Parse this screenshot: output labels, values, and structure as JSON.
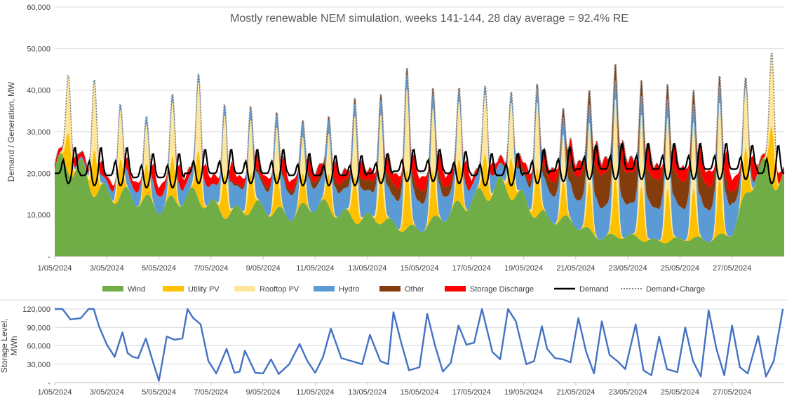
{
  "chart_data": [
    {
      "type": "area",
      "title": "Mostly renewable NEM simulation, weeks 141-144, 28 day average = 92.4% RE",
      "ylabel": "Demand / Generation, MW",
      "xlabel": "",
      "ylim": [
        0,
        60000
      ],
      "y_ticks": [
        "-",
        "10,000",
        "20,000",
        "30,000",
        "40,000",
        "50,000",
        "60,000"
      ],
      "x_ticks": [
        "1/05/2024",
        "3/05/2024",
        "5/05/2024",
        "7/05/2024",
        "9/05/2024",
        "11/05/2024",
        "13/05/2024",
        "15/05/2024",
        "17/05/2024",
        "19/05/2024",
        "21/05/2024",
        "23/05/2024",
        "25/05/2024",
        "27/05/2024"
      ],
      "days": 28,
      "stacked_series": [
        {
          "name": "Wind",
          "color": "#70AD47",
          "daily_mw": [
            21000,
            20000,
            16000,
            13000,
            13000,
            14000,
            12500,
            11000,
            11000,
            11000,
            11500,
            11000,
            9000,
            7500,
            7000,
            9000,
            15000,
            16000,
            14000,
            9000,
            7500,
            5000,
            4500,
            4000,
            4000,
            4000,
            6000,
            20000
          ]
        },
        {
          "name": "Utility PV",
          "color": "#FFC000",
          "peak_mw": [
            11000,
            10500,
            9500,
            8500,
            8500,
            10500,
            10000,
            9000,
            8500,
            8000,
            8500,
            10000,
            10500,
            11000,
            10500,
            10500,
            11000,
            11000,
            10500,
            11000,
            11500,
            10500,
            10000,
            10000,
            10500,
            10500,
            10000,
            9000
          ]
        },
        {
          "name": "Rooftop PV",
          "color": "#FFE699",
          "peak_mw": [
            16000,
            15500,
            13000,
            11000,
            11500,
            15500,
            13500,
            12500,
            11000,
            10000,
            11000,
            13500,
            14500,
            15500,
            14500,
            14500,
            15500,
            15000,
            14500,
            14500,
            15000,
            14000,
            13500,
            13500,
            14000,
            14000,
            13500,
            12000
          ]
        },
        {
          "name": "Hydro",
          "color": "#5B9BD5",
          "daily_mw": [
            0,
            500,
            1500,
            3000,
            3500,
            3000,
            3500,
            4500,
            5000,
            5500,
            5500,
            5000,
            5500,
            6000,
            6000,
            5500,
            3500,
            3000,
            4500,
            6500,
            7000,
            7500,
            7500,
            7500,
            7500,
            7500,
            6000,
            0
          ]
        },
        {
          "name": "Other",
          "color": "#843C0C",
          "daily_mw": [
            0,
            0,
            0,
            0,
            0,
            0,
            0,
            500,
            1000,
            1000,
            1500,
            2000,
            2500,
            3000,
            3000,
            2500,
            0,
            0,
            1000,
            3000,
            5500,
            8000,
            7500,
            7000,
            6500,
            6000,
            3000,
            0
          ]
        },
        {
          "name": "Storage Discharge",
          "color": "#FF0000",
          "evening_mw": [
            2500,
            3000,
            3000,
            4000,
            4500,
            4000,
            4000,
            4000,
            4000,
            4000,
            4500,
            4500,
            5000,
            5500,
            5500,
            5000,
            3000,
            3000,
            4500,
            6000,
            6500,
            6500,
            6500,
            6500,
            6500,
            6500,
            5000,
            2000
          ]
        }
      ],
      "line_series": [
        {
          "name": "Demand",
          "color": "#000000",
          "style": "solid",
          "evening_peak_mw": [
            26500,
            26500,
            26500,
            25000,
            25000,
            26000,
            26000,
            26000,
            26000,
            25000,
            24500,
            24500,
            25000,
            26000,
            26000,
            25500,
            25000,
            25000,
            26000,
            26500,
            27000,
            27500,
            27500,
            27500,
            27500,
            27500,
            27000,
            27000
          ],
          "overnight_min_mw": [
            20000,
            19500,
            19500,
            19000,
            19000,
            20000,
            20000,
            20000,
            20000,
            19500,
            19500,
            19500,
            20000,
            20500,
            20500,
            20000,
            19500,
            19500,
            20000,
            20500,
            21000,
            21000,
            21000,
            21000,
            21000,
            21000,
            21000,
            20000
          ]
        },
        {
          "name": "Demand+Charge",
          "color": "#808080",
          "style": "dotted",
          "midday_peak_mw": [
            44000,
            43000,
            37000,
            34000,
            39500,
            44500,
            37000,
            36500,
            35000,
            33000,
            34000,
            38500,
            39500,
            46000,
            41000,
            41000,
            41500,
            40000,
            42000,
            36000,
            40500,
            47000,
            43000,
            42000,
            40500,
            44000,
            43500,
            49500
          ]
        }
      ],
      "legend": [
        "Wind",
        "Utility PV",
        "Rooftop PV",
        "Hydro",
        "Other",
        "Storage Discharge",
        "Demand",
        "Demand+Charge"
      ],
      "legend_placement": "bottom"
    },
    {
      "type": "line",
      "ylabel": "Storage Level, MWh",
      "xlabel": "",
      "ylim": [
        0,
        120000
      ],
      "y_ticks": [
        "-",
        "30,000",
        "60,000",
        "90,000",
        "120,000"
      ],
      "x_ticks": [
        "1/05/2024",
        "3/05/2024",
        "5/05/2024",
        "7/05/2024",
        "9/05/2024",
        "11/05/2024",
        "13/05/2024",
        "15/05/2024",
        "17/05/2024",
        "19/05/2024",
        "21/05/2024",
        "23/05/2024",
        "25/05/2024",
        "27/05/2024"
      ],
      "series": [
        {
          "name": "Storage Level",
          "color": "#4472C4",
          "x_days": [
            0,
            0.3,
            0.6,
            1.0,
            1.3,
            1.5,
            1.7,
            2.0,
            2.3,
            2.6,
            2.8,
            3.0,
            3.2,
            3.5,
            3.8,
            4.0,
            4.3,
            4.6,
            4.9,
            5.1,
            5.3,
            5.6,
            5.9,
            6.2,
            6.6,
            6.9,
            7.1,
            7.3,
            7.7,
            8.0,
            8.3,
            8.6,
            9.0,
            9.4,
            9.7,
            10.0,
            10.3,
            10.6,
            11.0,
            11.4,
            11.8,
            12.1,
            12.5,
            12.8,
            13.0,
            13.3,
            13.6,
            14.0,
            14.3,
            14.6,
            14.9,
            15.2,
            15.5,
            15.8,
            16.1,
            16.4,
            16.8,
            17.1,
            17.4,
            17.7,
            18.1,
            18.4,
            18.7,
            18.9,
            19.2,
            19.5,
            19.8,
            20.1,
            20.4,
            20.7,
            21.0,
            21.3,
            21.6,
            21.9,
            22.3,
            22.6,
            22.9,
            23.2,
            23.5,
            23.9,
            24.2,
            24.5,
            24.8,
            25.1,
            25.4,
            25.7,
            26.0,
            26.3,
            26.6,
            27.0,
            27.3,
            27.6,
            27.95
          ],
          "values_mwh": [
            120000,
            120000,
            103000,
            105000,
            120000,
            120000,
            92000,
            62000,
            42000,
            82000,
            48000,
            42000,
            40000,
            72000,
            30000,
            3000,
            75000,
            70000,
            72000,
            120000,
            106000,
            95000,
            35000,
            15000,
            55000,
            16000,
            18000,
            52000,
            16000,
            15000,
            38000,
            14000,
            30000,
            63000,
            35000,
            16000,
            42000,
            88000,
            40000,
            35000,
            30000,
            78000,
            35000,
            30000,
            115000,
            65000,
            20000,
            25000,
            112000,
            60000,
            18000,
            32000,
            93000,
            62000,
            65000,
            120000,
            50000,
            38000,
            120000,
            100000,
            30000,
            35000,
            92000,
            55000,
            40000,
            38000,
            33000,
            105000,
            50000,
            15000,
            100000,
            45000,
            35000,
            22000,
            95000,
            20000,
            12000,
            75000,
            22000,
            17000,
            90000,
            35000,
            10000,
            118000,
            55000,
            12000,
            93000,
            25000,
            15000,
            76000,
            10000,
            35000,
            120000
          ]
        }
      ]
    }
  ]
}
